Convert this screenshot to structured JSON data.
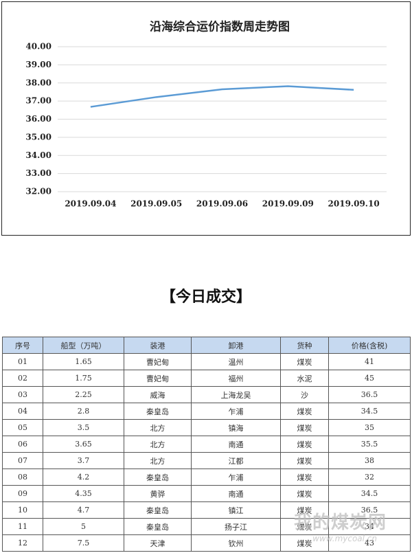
{
  "chart_data": {
    "type": "line",
    "title": "沿海综合运价指数周走势图",
    "categories": [
      "2019.09.04",
      "2019.09.05",
      "2019.09.06",
      "2019.09.09",
      "2019.09.10"
    ],
    "values": [
      36.68,
      37.22,
      37.65,
      37.82,
      37.62
    ],
    "color": "#5b9bd5",
    "ylim": [
      32,
      40
    ],
    "yticks": [
      {
        "value": 32,
        "label": "32.00"
      },
      {
        "value": 33,
        "label": "33.00"
      },
      {
        "value": 34,
        "label": "34.00"
      },
      {
        "value": 35,
        "label": "35.00"
      },
      {
        "value": 36,
        "label": "36.00"
      },
      {
        "value": 37,
        "label": "37.00"
      },
      {
        "value": 38,
        "label": "38.00"
      },
      {
        "value": 39,
        "label": "39.00"
      },
      {
        "value": 40,
        "label": "40.00"
      }
    ],
    "grid": true
  },
  "section_title": "【今日成交】",
  "table": {
    "header": [
      "序号",
      "船型（万吨）",
      "装港",
      "卸港",
      "货种",
      "价格(含税)"
    ],
    "rows": [
      [
        "01",
        "1.65",
        "曹妃甸",
        "温州",
        "煤炭",
        "41"
      ],
      [
        "02",
        "1.75",
        "曹妃甸",
        "福州",
        "水泥",
        "45"
      ],
      [
        "03",
        "2.25",
        "威海",
        "上海龙吴",
        "沙",
        "36.5"
      ],
      [
        "04",
        "2.8",
        "秦皇岛",
        "乍浦",
        "煤炭",
        "34.5"
      ],
      [
        "05",
        "3.5",
        "北方",
        "镇海",
        "煤炭",
        "35"
      ],
      [
        "06",
        "3.65",
        "北方",
        "南通",
        "煤炭",
        "35.5"
      ],
      [
        "07",
        "3.7",
        "北方",
        "江都",
        "煤炭",
        "38"
      ],
      [
        "08",
        "4.2",
        "秦皇岛",
        "乍浦",
        "煤炭",
        "32"
      ],
      [
        "09",
        "4.35",
        "黄骅",
        "南通",
        "煤炭",
        "34.5"
      ],
      [
        "10",
        "4.7",
        "秦皇岛",
        "镇江",
        "煤炭",
        "36.5"
      ],
      [
        "11",
        "5",
        "秦皇岛",
        "扬子江",
        "煤炭",
        "34"
      ],
      [
        "12",
        "7.5",
        "天津",
        "钦州",
        "煤炭",
        "43"
      ]
    ]
  },
  "watermark": {
    "name": "我的煤炭网",
    "url": "www.mycoal.cn"
  }
}
